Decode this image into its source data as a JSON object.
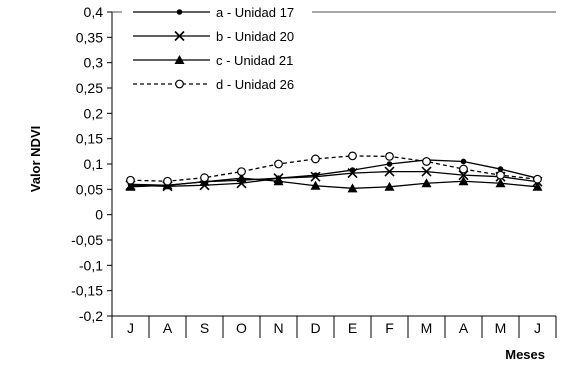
{
  "chart_data": {
    "type": "line",
    "ylabel": "Valor NDVI",
    "xlabel": "Meses",
    "categories": [
      "J",
      "A",
      "S",
      "O",
      "N",
      "D",
      "E",
      "F",
      "M",
      "A",
      "M",
      "J"
    ],
    "ylim": [
      -0.2,
      0.4
    ],
    "yticks": [
      0.4,
      0.35,
      0.3,
      0.25,
      0.2,
      0.15,
      0.1,
      0.05,
      0,
      -0.05,
      -0.1,
      -0.15,
      -0.2
    ],
    "ytick_labels": [
      "0,4",
      "0,35",
      "0,3",
      "0,25",
      "0,2",
      "0,15",
      "0,1",
      "0,05",
      "0",
      "-0,05",
      "-0,1",
      "-0,15",
      "-0,2"
    ],
    "grid": "horizontal-top-only",
    "legend_position": "top-left",
    "series": [
      {
        "name": "a - Unidad 17",
        "marker": "dot",
        "dash": "solid",
        "values": [
          0.06,
          0.058,
          0.065,
          0.068,
          0.072,
          0.078,
          0.088,
          0.1,
          0.108,
          0.105,
          0.09,
          0.072
        ]
      },
      {
        "name": "b - Unidad 20",
        "marker": "x",
        "dash": "solid",
        "values": [
          0.058,
          0.056,
          0.058,
          0.062,
          0.072,
          0.075,
          0.082,
          0.085,
          0.085,
          0.078,
          0.075,
          0.065
        ]
      },
      {
        "name": "c - Unidad 21",
        "marker": "triangle",
        "dash": "solid",
        "values": [
          0.055,
          0.058,
          0.065,
          0.072,
          0.066,
          0.057,
          0.052,
          0.055,
          0.062,
          0.066,
          0.062,
          0.055
        ]
      },
      {
        "name": "d - Unidad 26",
        "marker": "circle-open",
        "dash": "dashed",
        "values": [
          0.068,
          0.066,
          0.073,
          0.085,
          0.1,
          0.11,
          0.116,
          0.115,
          0.105,
          0.09,
          0.078,
          0.07
        ]
      }
    ]
  }
}
